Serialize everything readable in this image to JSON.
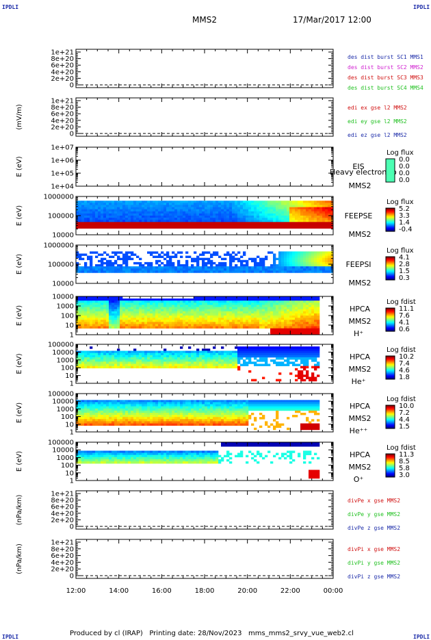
{
  "header": {
    "corner_label": "IPDLI",
    "spacecraft": "MMS2",
    "datetime": "17/Mar/2017 12:00"
  },
  "footer": {
    "text": "Produced by cl (IRAP)   Printing date: 28/Nov/2023   mms_mms2_srvy_vue_web2.cl"
  },
  "colors": {
    "mms1": "#1a2aa8",
    "mms2": "#d020d0",
    "mms3": "#d01010",
    "mms4": "#20c020",
    "x_red": "#d01010",
    "y_green": "#20c020",
    "z_blue": "#1a2aa8"
  },
  "chart_data": [
    {
      "type": "line",
      "ylabel": "",
      "y_ticks": [
        "1e+21",
        "8e+20",
        "6e+20",
        "4e+20",
        "2e+20",
        "0"
      ],
      "legend": [
        {
          "text": "des dist burst SC1 MMS1",
          "color": "#1a2aa8"
        },
        {
          "text": "des dist burst SC2 MMS2",
          "color": "#d020d0"
        },
        {
          "text": "des dist burst SC3 MMS3",
          "color": "#d01010"
        },
        {
          "text": "des dist burst SC4 MMS4",
          "color": "#20c020"
        }
      ],
      "series": [],
      "baseline": 0
    },
    {
      "type": "line",
      "ylabel": "(mV/m)",
      "y_ticks": [
        "1e+21",
        "8e+20",
        "6e+20",
        "4e+20",
        "2e+20",
        "0"
      ],
      "legend": [
        {
          "text": "edi ex gse l2 MMS2",
          "color": "#d01010"
        },
        {
          "text": "edi ey gse l2 MMS2",
          "color": "#20c020"
        },
        {
          "text": "edi ez gse l2 MMS2",
          "color": "#1a2aa8"
        }
      ],
      "series": [],
      "baseline": 0
    },
    {
      "type": "heatmap",
      "ylabel": "E (eV)",
      "y_ticks": [
        "1e+07",
        "1e+06",
        "1e+05",
        "1e+04"
      ],
      "right_labels": [
        "EIS",
        "MMS2"
      ],
      "overlay_text": "Heavy electron to",
      "colorbar_title": "Log flux",
      "colorbar_ticks": [
        "0.0",
        "0.0",
        "0.0",
        "0.0"
      ],
      "empty": true
    },
    {
      "type": "heatmap",
      "ylabel": "E (eV)",
      "y_ticks": [
        "1000000",
        "100000",
        "10000"
      ],
      "right_labels": [
        "FEEPSE",
        "MMS2"
      ],
      "colorbar_title": "Log flux",
      "colorbar_ticks": [
        "5.2",
        "3.3",
        "1.4",
        "-0.4"
      ],
      "species": "feepse"
    },
    {
      "type": "heatmap",
      "ylabel": "E (eV)",
      "y_ticks": [
        "1000000",
        "100000",
        "10000"
      ],
      "right_labels": [
        "FEEPSI",
        "MMS2"
      ],
      "colorbar_title": "Log flux",
      "colorbar_ticks": [
        "4.1",
        "2.8",
        "1.5",
        "0.3"
      ],
      "species": "feepsi"
    },
    {
      "type": "heatmap",
      "ylabel": "E (eV)",
      "y_ticks": [
        "10000",
        "1000",
        "100",
        "10",
        "1"
      ],
      "right_labels": [
        "HPCA",
        "MMS2",
        "H⁺"
      ],
      "colorbar_title": "Log fdist",
      "colorbar_ticks": [
        "11.1",
        "7.6",
        "4.1",
        "0.6"
      ],
      "species": "hplus"
    },
    {
      "type": "heatmap",
      "ylabel": "E (eV)",
      "y_ticks": [
        "100000",
        "10000",
        "1000",
        "100",
        "10",
        "1"
      ],
      "right_labels": [
        "HPCA",
        "MMS2",
        "He⁺"
      ],
      "colorbar_title": "Log fdist",
      "colorbar_ticks": [
        "10.2",
        "7.4",
        "4.6",
        "1.8"
      ],
      "species": "heplus"
    },
    {
      "type": "heatmap",
      "ylabel": "E (eV)",
      "y_ticks": [
        "100000",
        "10000",
        "1000",
        "100",
        "10",
        "1"
      ],
      "right_labels": [
        "HPCA",
        "MMS2",
        "He⁺⁺"
      ],
      "colorbar_title": "Log fdist",
      "colorbar_ticks": [
        "10.0",
        "7.2",
        "4.4",
        "1.5"
      ],
      "species": "heplusplus"
    },
    {
      "type": "heatmap",
      "ylabel": "E (eV)",
      "y_ticks": [
        "100000",
        "10000",
        "1000",
        "100",
        "10",
        "1"
      ],
      "right_labels": [
        "HPCA",
        "MMS2",
        "O⁺"
      ],
      "colorbar_title": "Log fdist",
      "colorbar_ticks": [
        "11.3",
        "8.5",
        "5.8",
        "3.0"
      ],
      "species": "oplus"
    },
    {
      "type": "line",
      "ylabel": "(nPa/km)",
      "y_ticks": [
        "1e+21",
        "8e+20",
        "6e+20",
        "4e+20",
        "2e+20",
        "0"
      ],
      "legend": [
        {
          "text": "divPe x gse MMS2",
          "color": "#d01010"
        },
        {
          "text": "divPe y gse MMS2",
          "color": "#20c020"
        },
        {
          "text": "divPe z gse MMS2",
          "color": "#1a2aa8"
        }
      ],
      "series": [],
      "baseline": 0
    },
    {
      "type": "line",
      "ylabel": "(nPa/km)",
      "y_ticks": [
        "1e+21",
        "8e+20",
        "6e+20",
        "4e+20",
        "2e+20",
        "0"
      ],
      "legend": [
        {
          "text": "divPi x gse MMS2",
          "color": "#d01010"
        },
        {
          "text": "divPi y gse MMS2",
          "color": "#20c020"
        },
        {
          "text": "divPi z gse MMS2",
          "color": "#1a2aa8"
        }
      ],
      "series": [],
      "baseline": 0
    }
  ],
  "x_axis": {
    "tick_labels": [
      "12:00",
      "14:00",
      "16:00",
      "18:00",
      "20:00",
      "22:00",
      "00:00"
    ],
    "range_hours": [
      12,
      24
    ]
  }
}
